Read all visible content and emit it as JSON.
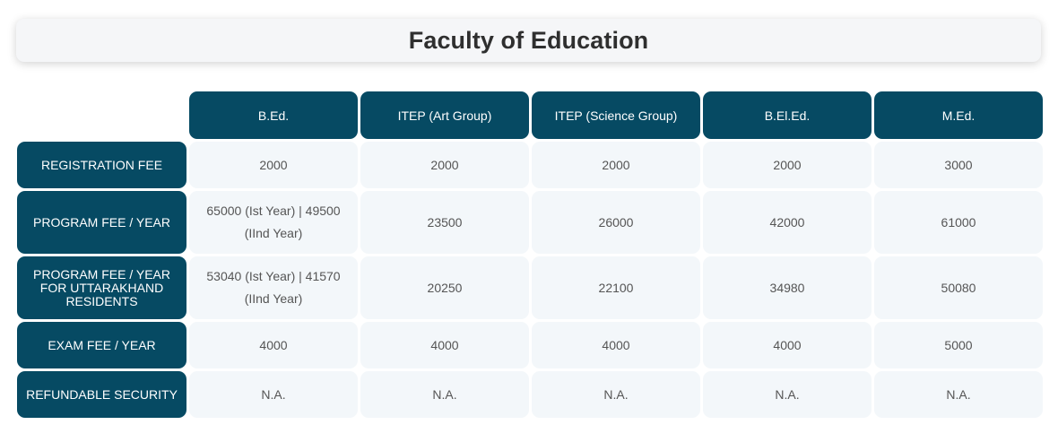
{
  "header": {
    "title": "Faculty of Education"
  },
  "table": {
    "columns": [
      "B.Ed.",
      "ITEP (Art Group)",
      "ITEP (Science Group)",
      "B.El.Ed.",
      "M.Ed."
    ],
    "rows": [
      {
        "label": "REGISTRATION FEE",
        "values": [
          "2000",
          "2000",
          "2000",
          "2000",
          "3000"
        ]
      },
      {
        "label": "PROGRAM FEE / YEAR",
        "values": [
          "65000 (Ist Year) | 49500 (IInd Year)",
          "23500",
          "26000",
          "42000",
          "61000"
        ]
      },
      {
        "label": "PROGRAM FEE / YEAR FOR UTTARAKHAND RESIDENTS",
        "values": [
          "53040 (Ist Year) | 41570 (IInd Year)",
          "20250",
          "22100",
          "34980",
          "50080"
        ]
      },
      {
        "label": "EXAM FEE / YEAR",
        "values": [
          "4000",
          "4000",
          "4000",
          "4000",
          "5000"
        ]
      },
      {
        "label": "REFUNDABLE SECURITY",
        "values": [
          "N.A.",
          "N.A.",
          "N.A.",
          "N.A.",
          "N.A."
        ]
      }
    ]
  },
  "colors": {
    "header_bg": "#064a63",
    "cell_bg": "#f3f7fa",
    "title_card_bg": "#f5f6f8",
    "title_text": "#2f2f2f",
    "cell_text": "#555555"
  }
}
